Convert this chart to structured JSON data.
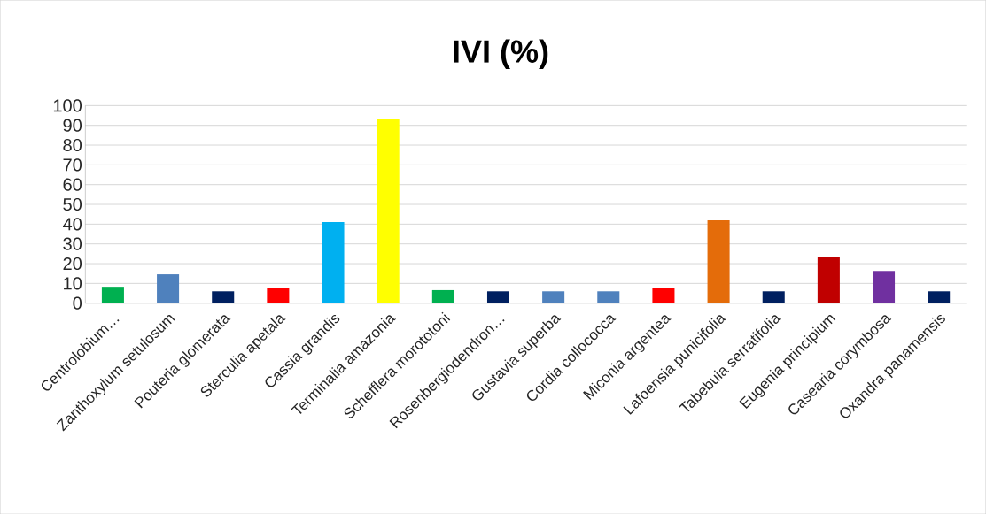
{
  "chart_data": {
    "type": "bar",
    "title": "**IVI (%)**",
    "categories": [
      "Centrolobium…",
      "Zanthoxylum setulosum",
      "Pouteria glomerata",
      "Sterculia apetala",
      "Cassia grandis",
      "Terminalia amazonia",
      "Schefflera morototoni",
      "Rosenbergiodendron…",
      "Gustavia superba",
      "Cordia collococca",
      "Miconia argentea",
      "Lafoensia punicifolia",
      "Tabebuia serratifolia",
      "Eugenia principium",
      "Casearia corymbosa",
      "Oxandra panamensis"
    ],
    "values": [
      8.3,
      14.6,
      6.0,
      7.7,
      41,
      93.5,
      6.6,
      6.0,
      6.0,
      6.0,
      7.9,
      41.9,
      6.0,
      23.6,
      16.3,
      6.0
    ],
    "colors": [
      "#00b050",
      "#4f81bd",
      "#002060",
      "#ff0000",
      "#00b0f0",
      "#ffff00",
      "#00b050",
      "#002060",
      "#4f81bd",
      "#4f81bd",
      "#ff0000",
      "#e46c0a",
      "#002060",
      "#c00000",
      "#7030a0",
      "#002060"
    ],
    "ylim": [
      0,
      100
    ],
    "yticks": [
      0,
      10,
      20,
      30,
      40,
      50,
      60,
      70,
      80,
      90,
      100
    ],
    "grid": "y"
  }
}
